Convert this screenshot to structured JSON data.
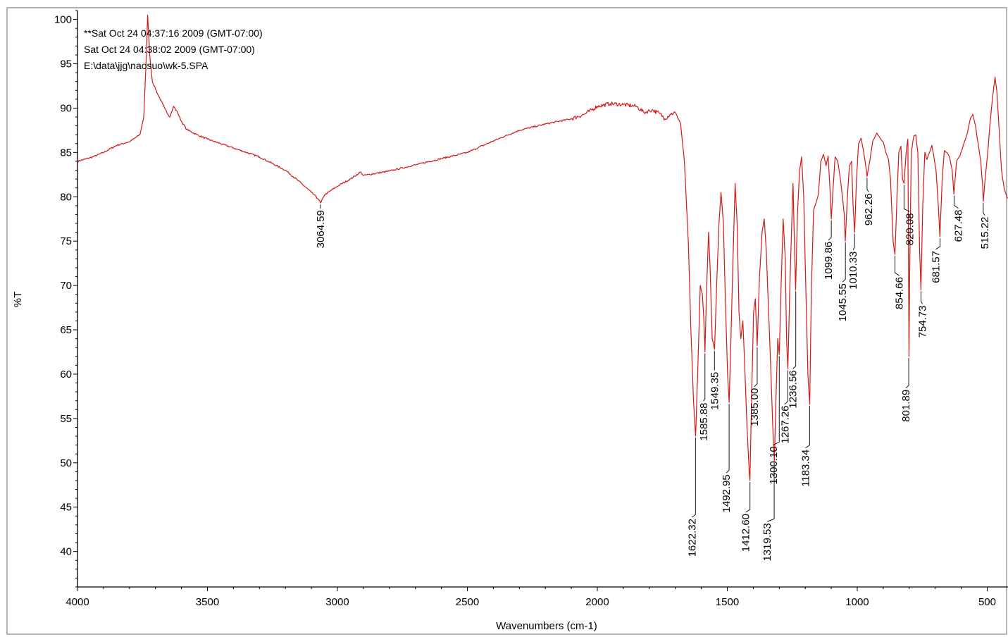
{
  "header": {
    "line1": "**Sat Oct 24 04:37:16 2009 (GMT-07:00)",
    "line2": "Sat Oct 24 04:38:02 2009 (GMT-07:00)",
    "line3": "E:\\data\\jjg\\naosuo\\wk-5.SPA"
  },
  "colors": {
    "trace": "#d41818",
    "axis": "#000000",
    "frame": "#9c9c9c"
  },
  "chart_data": {
    "type": "line",
    "title": "",
    "xlabel": "Wavenumbers (cm-1)",
    "ylabel": "%T",
    "xlim": [
      4000,
      420
    ],
    "ylim": [
      36,
      101
    ],
    "x_reversed": true,
    "grid": false,
    "xticks": [
      4000,
      3500,
      3000,
      2500,
      2000,
      1500,
      1000,
      500
    ],
    "yticks": [
      40,
      45,
      50,
      55,
      60,
      65,
      70,
      75,
      80,
      85,
      90,
      95,
      100
    ],
    "series": [
      {
        "points": [
          [
            4000,
            84
          ],
          [
            3940,
            84.5
          ],
          [
            3900,
            85
          ],
          [
            3850,
            85.8
          ],
          [
            3800,
            86.2
          ],
          [
            3760,
            87
          ],
          [
            3745,
            89
          ],
          [
            3735,
            96
          ],
          [
            3730,
            100.5
          ],
          [
            3722,
            96
          ],
          [
            3712,
            93
          ],
          [
            3690,
            91.5
          ],
          [
            3665,
            90
          ],
          [
            3645,
            89
          ],
          [
            3630,
            90.2
          ],
          [
            3615,
            89.5
          ],
          [
            3600,
            88.5
          ],
          [
            3580,
            87.6
          ],
          [
            3540,
            87
          ],
          [
            3500,
            86.5
          ],
          [
            3450,
            86
          ],
          [
            3400,
            85.5
          ],
          [
            3300,
            84.5
          ],
          [
            3200,
            83
          ],
          [
            3150,
            81.8
          ],
          [
            3100,
            80.5
          ],
          [
            3075,
            79.8
          ],
          [
            3064,
            79.3
          ],
          [
            3050,
            80.2
          ],
          [
            3000,
            81.2
          ],
          [
            2950,
            82
          ],
          [
            2910,
            82.8
          ],
          [
            2900,
            82.4
          ],
          [
            2800,
            82.9
          ],
          [
            2700,
            83.6
          ],
          [
            2600,
            84.3
          ],
          [
            2500,
            85
          ],
          [
            2400,
            86.3
          ],
          [
            2300,
            87.5
          ],
          [
            2200,
            88.2
          ],
          [
            2100,
            88.8
          ],
          [
            2050,
            89.3
          ],
          [
            2000,
            90.2
          ],
          [
            1950,
            90.5
          ],
          [
            1900,
            90.4
          ],
          [
            1850,
            90.2
          ],
          [
            1820,
            89.5
          ],
          [
            1790,
            89.8
          ],
          [
            1760,
            89.4
          ],
          [
            1740,
            88.8
          ],
          [
            1720,
            89.3
          ],
          [
            1700,
            89.5
          ],
          [
            1680,
            88.3
          ],
          [
            1665,
            84
          ],
          [
            1650,
            75
          ],
          [
            1640,
            65
          ],
          [
            1630,
            57
          ],
          [
            1622,
            53
          ],
          [
            1614,
            60
          ],
          [
            1604,
            70
          ],
          [
            1596,
            69
          ],
          [
            1590,
            66
          ],
          [
            1586,
            62.5
          ],
          [
            1579,
            70
          ],
          [
            1572,
            76
          ],
          [
            1566,
            72
          ],
          [
            1558,
            64
          ],
          [
            1549,
            62.8
          ],
          [
            1541,
            70
          ],
          [
            1532,
            77
          ],
          [
            1524,
            80.5
          ],
          [
            1515,
            77
          ],
          [
            1507,
            68
          ],
          [
            1499,
            60
          ],
          [
            1493,
            56.8
          ],
          [
            1486,
            64
          ],
          [
            1478,
            73
          ],
          [
            1470,
            81.5
          ],
          [
            1462,
            77
          ],
          [
            1455,
            67
          ],
          [
            1448,
            64
          ],
          [
            1440,
            66
          ],
          [
            1433,
            61
          ],
          [
            1424,
            54
          ],
          [
            1416,
            49.2
          ],
          [
            1413,
            48
          ],
          [
            1406,
            58
          ],
          [
            1399,
            67
          ],
          [
            1392,
            68.5
          ],
          [
            1385,
            63.2
          ],
          [
            1376,
            71
          ],
          [
            1366,
            76
          ],
          [
            1358,
            77.5
          ],
          [
            1350,
            74
          ],
          [
            1341,
            67
          ],
          [
            1332,
            60
          ],
          [
            1325,
            54
          ],
          [
            1319,
            50.2
          ],
          [
            1313,
            57
          ],
          [
            1306,
            64
          ],
          [
            1300,
            62.2
          ],
          [
            1293,
            70
          ],
          [
            1285,
            77.5
          ],
          [
            1277,
            73
          ],
          [
            1272,
            64
          ],
          [
            1267,
            60.6
          ],
          [
            1260,
            69
          ],
          [
            1252,
            77
          ],
          [
            1247,
            81.5
          ],
          [
            1242,
            75
          ],
          [
            1237,
            69.5
          ],
          [
            1230,
            78
          ],
          [
            1222,
            83
          ],
          [
            1214,
            84.5
          ],
          [
            1206,
            80
          ],
          [
            1198,
            70
          ],
          [
            1190,
            60
          ],
          [
            1183,
            56.6
          ],
          [
            1176,
            70
          ],
          [
            1168,
            78.5
          ],
          [
            1160,
            79.2
          ],
          [
            1150,
            80.2
          ],
          [
            1140,
            84
          ],
          [
            1130,
            84.8
          ],
          [
            1120,
            83.5
          ],
          [
            1112,
            84.6
          ],
          [
            1105,
            81
          ],
          [
            1100,
            77.5
          ],
          [
            1093,
            81
          ],
          [
            1085,
            84.5
          ],
          [
            1075,
            84
          ],
          [
            1065,
            82
          ],
          [
            1057,
            80
          ],
          [
            1050,
            78
          ],
          [
            1046,
            75
          ],
          [
            1038,
            80
          ],
          [
            1030,
            83.5
          ],
          [
            1022,
            84
          ],
          [
            1016,
            79
          ],
          [
            1010,
            76
          ],
          [
            1003,
            82
          ],
          [
            995,
            86
          ],
          [
            985,
            86.6
          ],
          [
            975,
            85
          ],
          [
            965,
            83
          ],
          [
            962,
            82.3
          ],
          [
            952,
            84
          ],
          [
            940,
            86.3
          ],
          [
            925,
            87.2
          ],
          [
            912,
            86.6
          ],
          [
            900,
            86.2
          ],
          [
            890,
            85
          ],
          [
            880,
            84.2
          ],
          [
            872,
            82
          ],
          [
            862,
            75
          ],
          [
            855,
            73.5
          ],
          [
            847,
            80
          ],
          [
            840,
            85
          ],
          [
            832,
            85.7
          ],
          [
            826,
            82
          ],
          [
            820,
            81.5
          ],
          [
            812,
            85
          ],
          [
            805,
            86.5
          ],
          [
            801,
            62
          ],
          [
            798,
            72
          ],
          [
            792,
            85
          ],
          [
            783,
            86.8
          ],
          [
            775,
            87
          ],
          [
            767,
            85
          ],
          [
            760,
            74
          ],
          [
            755,
            69.5
          ],
          [
            748,
            79
          ],
          [
            740,
            85
          ],
          [
            732,
            84.2
          ],
          [
            722,
            85
          ],
          [
            713,
            85.8
          ],
          [
            705,
            84.5
          ],
          [
            697,
            83
          ],
          [
            688,
            79
          ],
          [
            682,
            75.5
          ],
          [
            673,
            82
          ],
          [
            665,
            85.2
          ],
          [
            655,
            85
          ],
          [
            645,
            84.5
          ],
          [
            635,
            83
          ],
          [
            628,
            80.3
          ],
          [
            618,
            84
          ],
          [
            605,
            84.6
          ],
          [
            590,
            86
          ],
          [
            578,
            87
          ],
          [
            565,
            88.8
          ],
          [
            555,
            89.3
          ],
          [
            545,
            88
          ],
          [
            535,
            86
          ],
          [
            525,
            84
          ],
          [
            517,
            81
          ],
          [
            515,
            79.5
          ],
          [
            508,
            82
          ],
          [
            498,
            85
          ],
          [
            490,
            88
          ],
          [
            480,
            91
          ],
          [
            470,
            93.5
          ],
          [
            463,
            92
          ],
          [
            455,
            88
          ],
          [
            445,
            83
          ],
          [
            435,
            81
          ],
          [
            425,
            80
          ],
          [
            420,
            79.8
          ]
        ]
      }
    ],
    "peak_labels": [
      {
        "text": "3064.59",
        "x": 3064.59,
        "y": 79.3
      },
      {
        "text": "1622.32",
        "x": 1622.32,
        "y": 53
      },
      {
        "text": "1585.88",
        "x": 1585.88,
        "y": 62.5
      },
      {
        "text": "1549.35",
        "x": 1549.35,
        "y": 62.8
      },
      {
        "text": "1492.95",
        "x": 1492.95,
        "y": 56.8
      },
      {
        "text": "1412.60",
        "x": 1412.6,
        "y": 48
      },
      {
        "text": "1385.00",
        "x": 1385.0,
        "y": 63.2
      },
      {
        "text": "1319.53",
        "x": 1319.53,
        "y": 50.2
      },
      {
        "text": "1300.10",
        "x": 1300.1,
        "y": 62.2
      },
      {
        "text": "1267.26",
        "x": 1267.26,
        "y": 60.6
      },
      {
        "text": "1236.56",
        "x": 1236.56,
        "y": 69.5
      },
      {
        "text": "1183.34",
        "x": 1183.34,
        "y": 56.6
      },
      {
        "text": "1099.86",
        "x": 1099.86,
        "y": 77.5
      },
      {
        "text": "1045.55",
        "x": 1045.55,
        "y": 75
      },
      {
        "text": "1010.33",
        "x": 1010.33,
        "y": 76
      },
      {
        "text": "962.26",
        "x": 962.26,
        "y": 82.3
      },
      {
        "text": "854.66",
        "x": 854.66,
        "y": 73.5
      },
      {
        "text": "820.08",
        "x": 820.08,
        "y": 81.5
      },
      {
        "text": "801.89",
        "x": 801.89,
        "y": 62
      },
      {
        "text": "754.73",
        "x": 754.73,
        "y": 69.5
      },
      {
        "text": "681.57",
        "x": 681.57,
        "y": 75.5
      },
      {
        "text": "627.48",
        "x": 627.48,
        "y": 80.3
      },
      {
        "text": "515.22",
        "x": 515.22,
        "y": 79.5
      }
    ]
  }
}
